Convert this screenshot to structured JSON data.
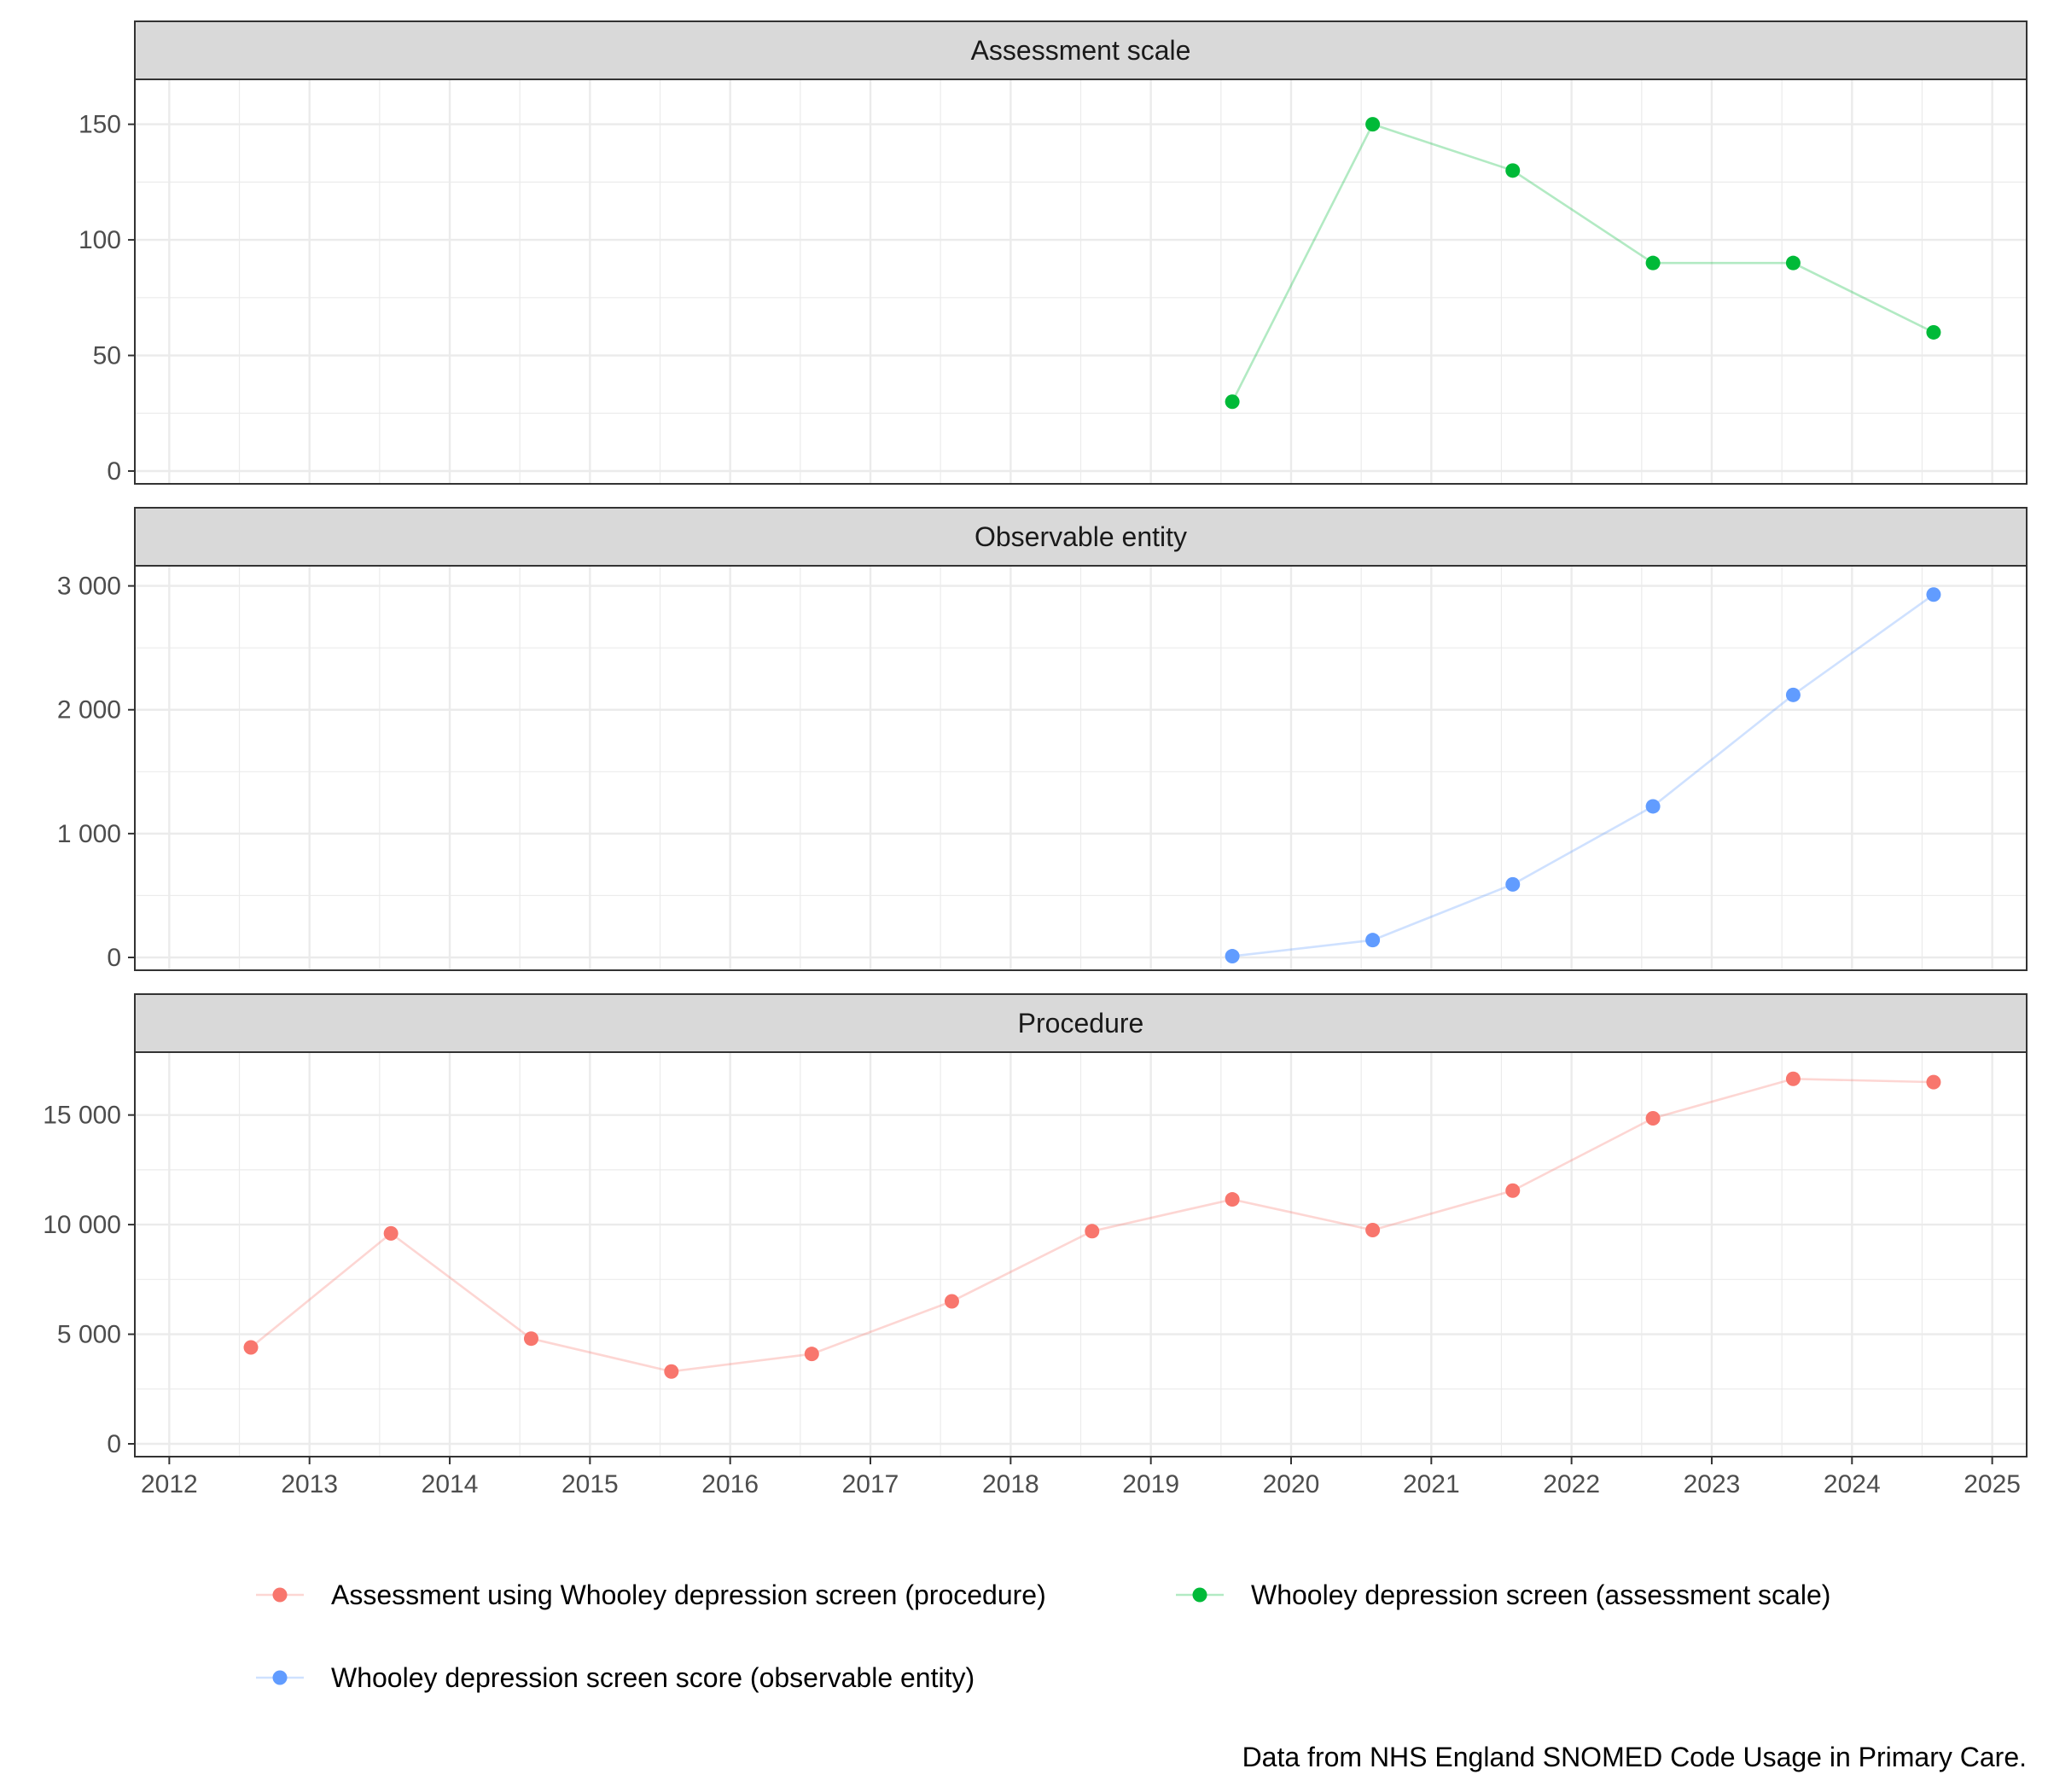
{
  "chart_data": {
    "type": "line",
    "facets": [
      {
        "title": "Assessment scale",
        "ylim": [
          0,
          165
        ],
        "yticks": [
          0,
          50,
          100,
          150
        ],
        "ytick_labels": [
          "0",
          "50",
          "100",
          "150"
        ]
      },
      {
        "title": "Observable entity",
        "ylim": [
          0,
          3080
        ],
        "yticks": [
          0,
          1000,
          2000,
          3000
        ],
        "ytick_labels": [
          "0",
          "1 000",
          "2 000",
          "3 000"
        ]
      },
      {
        "title": "Procedure",
        "ylim": [
          0,
          17400
        ],
        "yticks": [
          0,
          5000,
          10000,
          15000
        ],
        "ytick_labels": [
          "0",
          "5 000",
          "10 000",
          "15 000"
        ]
      }
    ],
    "xlim": [
      "2012-01-01",
      "2025-01-01"
    ],
    "xticks": [
      "2012",
      "2013",
      "2014",
      "2015",
      "2016",
      "2017",
      "2018",
      "2019",
      "2020",
      "2021",
      "2022",
      "2023",
      "2024",
      "2025"
    ],
    "series": [
      {
        "name": "Assessment using Whooley depression screen (procedure)",
        "facet": 2,
        "color": "#F8766D",
        "x": [
          "2012-08-01",
          "2013-08-01",
          "2014-08-01",
          "2015-08-01",
          "2016-08-01",
          "2017-08-01",
          "2018-08-01",
          "2019-08-01",
          "2020-08-01",
          "2021-08-01",
          "2022-08-01",
          "2023-08-01",
          "2024-08-01"
        ],
        "values": [
          4400,
          9600,
          4800,
          3300,
          4100,
          6500,
          9700,
          11150,
          9750,
          11550,
          14850,
          16650,
          16500
        ]
      },
      {
        "name": "Whooley depression screen (assessment scale)",
        "facet": 0,
        "color": "#00BA38",
        "x": [
          "2019-08-01",
          "2020-08-01",
          "2021-08-01",
          "2022-08-01",
          "2023-08-01",
          "2024-08-01"
        ],
        "values": [
          30,
          150,
          130,
          90,
          90,
          60
        ]
      },
      {
        "name": "Whooley depression screen score (observable entity)",
        "facet": 1,
        "color": "#619CFF",
        "x": [
          "2019-08-01",
          "2020-08-01",
          "2021-08-01",
          "2022-08-01",
          "2023-08-01",
          "2024-08-01"
        ],
        "values": [
          10,
          140,
          590,
          1220,
          2120,
          2930
        ]
      }
    ],
    "grid": true,
    "legend_position": "bottom",
    "caption": "Data from NHS England SNOMED Code Usage in Primary Care."
  }
}
